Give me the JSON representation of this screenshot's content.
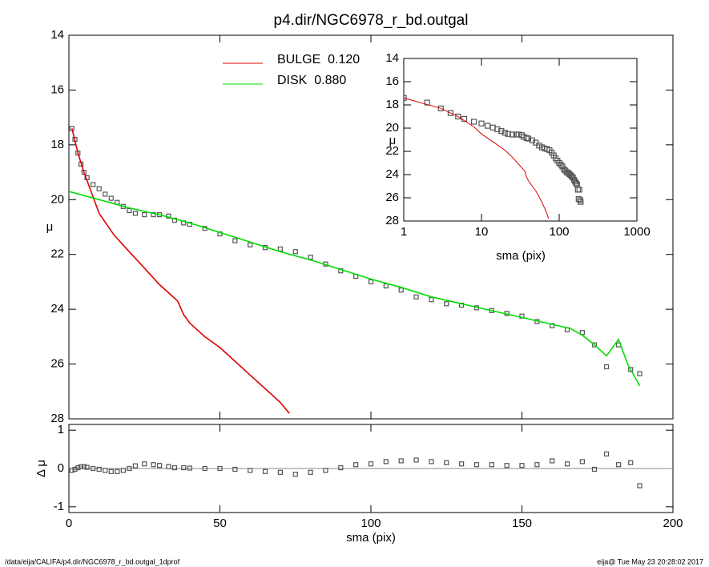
{
  "chart_data": [
    {
      "type": "line",
      "title": "p4.dir/NGC6978_r_bd.outgal",
      "ylabel": "μ",
      "ylim": [
        28,
        14
      ],
      "yticks": [
        14,
        16,
        18,
        20,
        22,
        24,
        26,
        28
      ],
      "xlim": [
        0,
        200
      ],
      "series": [
        {
          "color": "#555555",
          "marker": "square",
          "x": [
            1,
            2,
            3,
            4,
            5,
            6,
            8,
            10,
            12,
            14,
            16,
            18,
            20,
            22,
            25,
            28,
            30,
            33,
            35,
            38,
            40,
            45,
            50,
            55,
            60,
            65,
            70,
            75,
            80,
            85,
            90,
            95,
            100,
            105,
            110,
            115,
            120,
            125,
            130,
            135,
            140,
            145,
            150,
            155,
            160,
            165,
            170,
            174,
            178,
            182,
            186,
            189
          ],
          "values": [
            17.4,
            17.8,
            18.3,
            18.7,
            19.0,
            19.2,
            19.45,
            19.6,
            19.8,
            19.95,
            20.1,
            20.25,
            20.4,
            20.5,
            20.55,
            20.55,
            20.55,
            20.6,
            20.75,
            20.85,
            20.9,
            21.05,
            21.25,
            21.5,
            21.65,
            21.75,
            21.8,
            21.9,
            22.1,
            22.35,
            22.6,
            22.8,
            23.0,
            23.15,
            23.3,
            23.55,
            23.65,
            23.8,
            23.85,
            23.95,
            24.05,
            24.15,
            24.25,
            24.45,
            24.6,
            24.75,
            24.85,
            25.3,
            26.1,
            25.3,
            26.2,
            26.35
          ]
        },
        {
          "name": "BULGE  0.120",
          "color": "#dd0000",
          "x": [
            1,
            3,
            5,
            8,
            10,
            15,
            20,
            25,
            30,
            34,
            36,
            38,
            40,
            45,
            50,
            55,
            60,
            65,
            70,
            73
          ],
          "values": [
            17.4,
            18.3,
            19.0,
            19.9,
            20.5,
            21.3,
            21.9,
            22.5,
            23.1,
            23.5,
            23.7,
            24.2,
            24.5,
            25.0,
            25.4,
            25.9,
            26.4,
            26.9,
            27.4,
            27.8
          ]
        },
        {
          "name": "DISK  0.880",
          "color": "#00dd00",
          "x": [
            0,
            10,
            20,
            30,
            35,
            40,
            50,
            60,
            70,
            80,
            90,
            100,
            110,
            120,
            130,
            140,
            150,
            160,
            166,
            170,
            174,
            178,
            182,
            185,
            189
          ],
          "values": [
            19.7,
            20.0,
            20.3,
            20.55,
            20.7,
            20.85,
            21.2,
            21.55,
            21.9,
            22.2,
            22.55,
            22.9,
            23.2,
            23.55,
            23.8,
            24.05,
            24.3,
            24.55,
            24.7,
            24.95,
            25.3,
            25.7,
            25.1,
            26.0,
            26.8
          ]
        }
      ]
    },
    {
      "type": "scatter",
      "xlabel": "sma (pix)",
      "ylabel": "Δ μ",
      "xlim": [
        0,
        200
      ],
      "xticks": [
        0,
        50,
        100,
        150,
        200
      ],
      "ylim": [
        -1.15,
        1.15
      ],
      "yticks": [
        -1,
        0,
        1
      ],
      "color": "#555555",
      "x": [
        1,
        2,
        3,
        4,
        5,
        6,
        8,
        10,
        12,
        14,
        16,
        18,
        20,
        22,
        25,
        28,
        30,
        33,
        35,
        38,
        40,
        45,
        50,
        55,
        60,
        65,
        70,
        75,
        80,
        85,
        90,
        95,
        100,
        105,
        110,
        115,
        120,
        125,
        130,
        135,
        140,
        145,
        150,
        155,
        160,
        165,
        170,
        174,
        178,
        182,
        186,
        189
      ],
      "values": [
        -0.05,
        -0.02,
        0.02,
        0.05,
        0.05,
        0.03,
        0,
        -0.02,
        -0.05,
        -0.08,
        -0.08,
        -0.05,
        0,
        0.07,
        0.12,
        0.1,
        0.08,
        0.05,
        0.02,
        0.02,
        0.01,
        0,
        0,
        -0.02,
        -0.05,
        -0.08,
        -0.1,
        -0.15,
        -0.1,
        -0.05,
        0.02,
        0.1,
        0.12,
        0.18,
        0.2,
        0.22,
        0.18,
        0.15,
        0.12,
        0.1,
        0.1,
        0.08,
        0.08,
        0.1,
        0.2,
        0.12,
        0.18,
        -0.02,
        0.38,
        0.1,
        0.15,
        -0.45
      ]
    },
    {
      "type": "line",
      "xlabel": "sma (pix)",
      "ylabel": "μ",
      "log_x": true,
      "xlim": [
        1,
        1000
      ],
      "xticks": [
        1,
        10,
        100,
        1000
      ],
      "ylim": [
        28,
        14
      ],
      "yticks": [
        14,
        16,
        18,
        20,
        22,
        24,
        26,
        28
      ]
    }
  ],
  "footer": {
    "left": "/data/eija/CALIFA/p4.dir/NGC6978_r_bd.outgal_1dprof",
    "right": "eija@  Tue May 23 20:28:02 2017"
  }
}
